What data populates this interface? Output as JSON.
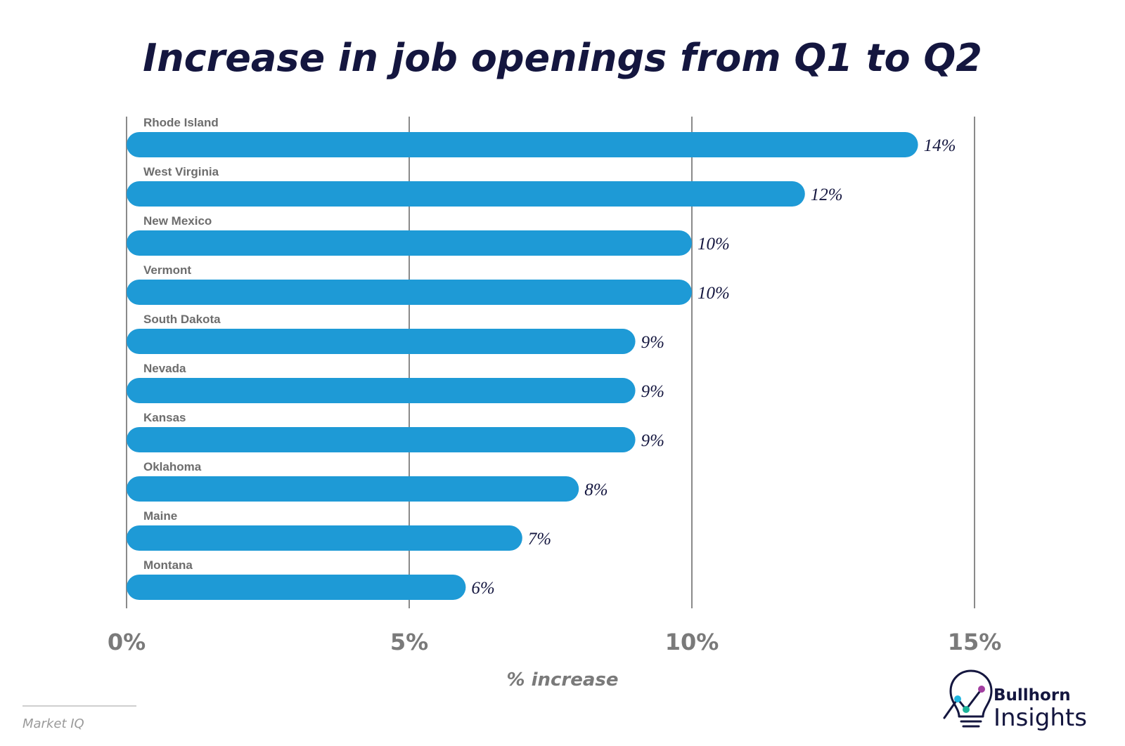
{
  "chart_data": {
    "type": "bar",
    "orientation": "horizontal",
    "title": "Increase in job openings from Q1 to Q2",
    "xlabel": "% increase",
    "ylabel": "",
    "categories": [
      "Rhode Island",
      "West Virginia",
      "New Mexico",
      "Vermont",
      "South Dakota",
      "Nevada",
      "Kansas",
      "Oklahoma",
      "Maine",
      "Montana"
    ],
    "values": [
      14,
      12,
      10,
      10,
      9,
      9,
      9,
      8,
      7,
      6
    ],
    "value_labels": [
      "14%",
      "12%",
      "10%",
      "10%",
      "9%",
      "9%",
      "9%",
      "8%",
      "7%",
      "6%"
    ],
    "xlim": [
      0,
      15
    ],
    "ticks": [
      0,
      5,
      10,
      15
    ],
    "tick_labels": [
      "0%",
      "5%",
      "10%",
      "15%"
    ],
    "grid": true,
    "bar_color": "#1e9ad6"
  },
  "source": "Market IQ",
  "brand": {
    "line1": "Bullhorn",
    "line2": "Insights",
    "logo_icon": "lightbulb-chart-icon"
  },
  "colors": {
    "title": "#14163f",
    "gridline": "#8a8a8a",
    "logo_cyan": "#1fb6e0",
    "logo_purple": "#a23ea0",
    "logo_teal": "#1db39a"
  }
}
